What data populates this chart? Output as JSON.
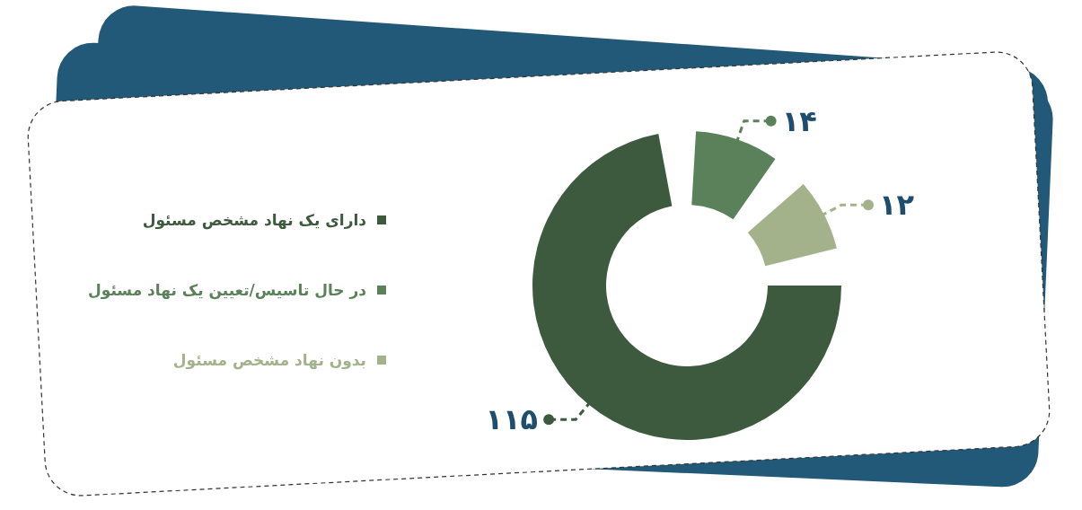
{
  "chart_data": {
    "type": "donut",
    "categories": [
      "دارای یک نهاد مشخص مسئول",
      "در حال تاسیس/تعیین یک نهاد مسئول",
      "بدون نهاد مشخص مسئول"
    ],
    "values": [
      115,
      14,
      12
    ],
    "colors": [
      "#3d5a3f",
      "#5a815a",
      "#a4b28b"
    ],
    "value_labels": [
      "۱۱۵",
      "۱۴",
      "۱۲"
    ],
    "legend": "left"
  }
}
